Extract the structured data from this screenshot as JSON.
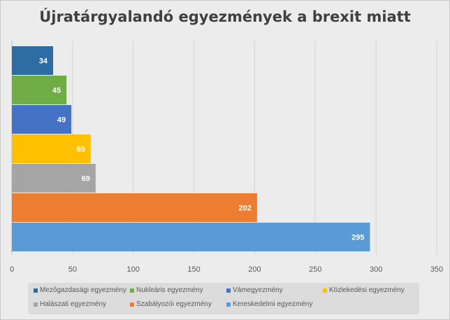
{
  "chart_data": {
    "type": "bar",
    "orientation": "horizontal",
    "title": "Újratárgyalandó egyezmények a brexit miatt",
    "xlim": [
      0,
      350
    ],
    "x_ticks": [
      0,
      50,
      100,
      150,
      200,
      250,
      300,
      350
    ],
    "grid": true,
    "legend_position": "bottom",
    "categories": [
      "Mezőgazdasági egyezmény",
      "Nukleáris egyezmény",
      "Vámegyezmény",
      "Közlekedési egyezmény",
      "Halászati egyezmény",
      "Szabályozói egyezmény",
      "Kereskedelmi egyezmény"
    ],
    "values": [
      34,
      45,
      49,
      65,
      69,
      202,
      295
    ],
    "colors": [
      "#2e6da4",
      "#70ad47",
      "#4472c4",
      "#ffc000",
      "#a5a5a5",
      "#ed7d31",
      "#5b9bd5"
    ]
  }
}
